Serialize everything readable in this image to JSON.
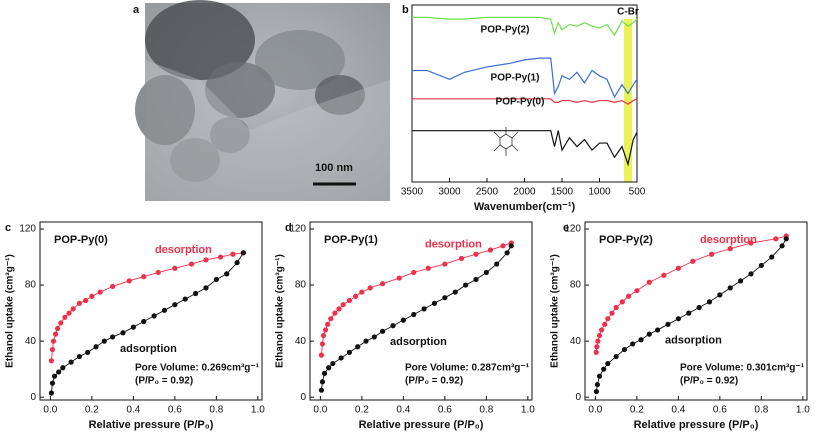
{
  "image_panel": {
    "label": "a",
    "scale_bar": "100 nm"
  },
  "chart_data": [
    {
      "type": "line",
      "panel_label": "b",
      "xlabel": "Wavenumber(cm⁻¹)",
      "xlim": [
        3500,
        500
      ],
      "xticks": [
        3500,
        3000,
        2500,
        2000,
        1500,
        1000,
        500
      ],
      "ylim": [
        0,
        100
      ],
      "annotations": [
        "C-Br"
      ],
      "x": [
        3500,
        3300,
        3000,
        2800,
        2500,
        2200,
        2000,
        1800,
        1650,
        1600,
        1550,
        1500,
        1400,
        1300,
        1200,
        1100,
        1000,
        900,
        800,
        700,
        620,
        550,
        500
      ],
      "series": [
        {
          "name": "POP-Py(2)",
          "color": "#6ee04a",
          "values": [
            93,
            93,
            92,
            92,
            93,
            93,
            93,
            93,
            92,
            84,
            90,
            86,
            89,
            88,
            90,
            88,
            87,
            89,
            83,
            91,
            88,
            90,
            92
          ]
        },
        {
          "name": "POP-Py(1)",
          "color": "#3a6fd0",
          "values": [
            63,
            63,
            58,
            62,
            65,
            67,
            69,
            70,
            70,
            50,
            54,
            60,
            58,
            62,
            56,
            63,
            60,
            58,
            48,
            55,
            50,
            55,
            58
          ]
        },
        {
          "name": "POP-Py(0)",
          "color": "#e8344a",
          "values": [
            47,
            47,
            47,
            47,
            47,
            47,
            47,
            47,
            47,
            45,
            45,
            46,
            46,
            45,
            46,
            45,
            46,
            46,
            45,
            46,
            44,
            46,
            47
          ]
        },
        {
          "color": "#111111",
          "values": [
            29,
            29,
            29,
            29,
            29,
            29,
            29,
            29,
            29,
            20,
            29,
            18,
            25,
            20,
            24,
            18,
            22,
            22,
            14,
            20,
            10,
            24,
            28
          ]
        }
      ]
    },
    {
      "type": "line",
      "panel_label": "c",
      "title": "POP-Py(0)",
      "xlabel": "Relative pressure (P/P₀)",
      "ylabel": "Ethanol uptake (cm³g⁻¹)",
      "xlim": [
        -0.05,
        1.02
      ],
      "ylim": [
        -2,
        125
      ],
      "xticks": [
        {
          "value": 0,
          "label": "0.0"
        },
        {
          "value": 0.2,
          "label": "0.2"
        },
        {
          "value": 0.4,
          "label": "0.4"
        },
        {
          "value": 0.6,
          "label": "0.6"
        },
        {
          "value": 0.8,
          "label": "0.8"
        },
        {
          "value": 1,
          "label": "1.0"
        }
      ],
      "yticks": [
        0,
        40,
        80,
        120
      ],
      "annotations": [
        "Pore Volume: 0.269cm³g⁻¹",
        "(P/P₀ = 0.92)"
      ],
      "series": [
        {
          "name": "desorption",
          "color": "#f0304a",
          "x": [
            0.93,
            0.88,
            0.82,
            0.75,
            0.68,
            0.6,
            0.52,
            0.45,
            0.38,
            0.3,
            0.24,
            0.2,
            0.17,
            0.14,
            0.11,
            0.09,
            0.07,
            0.05,
            0.035,
            0.025,
            0.015,
            0.01,
            0.005
          ],
          "values": [
            103,
            102,
            100,
            98,
            95,
            92,
            89,
            86,
            83,
            79,
            75,
            72,
            69,
            67,
            63,
            60,
            57,
            53,
            49,
            45,
            40,
            34,
            26
          ]
        },
        {
          "name": "adsorption",
          "color": "#111111",
          "x": [
            0.005,
            0.01,
            0.02,
            0.04,
            0.06,
            0.1,
            0.14,
            0.18,
            0.22,
            0.26,
            0.3,
            0.35,
            0.4,
            0.45,
            0.5,
            0.55,
            0.6,
            0.65,
            0.7,
            0.75,
            0.8,
            0.85,
            0.9,
            0.93
          ],
          "values": [
            3,
            10,
            15,
            18,
            21,
            25,
            29,
            32,
            36,
            40,
            43,
            46,
            50,
            54,
            58,
            62,
            66,
            70,
            74,
            78,
            84,
            88,
            96,
            103
          ]
        }
      ]
    },
    {
      "type": "line",
      "panel_label": "d",
      "title": "POP-Py(1)",
      "xlabel": "Relative pressure (P/P₀)",
      "ylabel": "Ethanol uptake (cm³g⁻¹)",
      "xlim": [
        -0.05,
        1.02
      ],
      "ylim": [
        -2,
        125
      ],
      "xticks": [
        {
          "value": 0,
          "label": "0.0"
        },
        {
          "value": 0.2,
          "label": "0.2"
        },
        {
          "value": 0.4,
          "label": "0.4"
        },
        {
          "value": 0.6,
          "label": "0.6"
        },
        {
          "value": 0.8,
          "label": "0.8"
        },
        {
          "value": 1,
          "label": "1.0"
        }
      ],
      "yticks": [
        0,
        40,
        80,
        120
      ],
      "annotations": [
        "Pore Volume: 0.287cm³g⁻¹",
        "(P/P₀ = 0.92)"
      ],
      "series": [
        {
          "name": "desorption",
          "color": "#f0304a",
          "x": [
            0.92,
            0.88,
            0.82,
            0.75,
            0.68,
            0.6,
            0.52,
            0.45,
            0.38,
            0.3,
            0.24,
            0.2,
            0.17,
            0.14,
            0.11,
            0.09,
            0.07,
            0.05,
            0.035,
            0.025,
            0.015,
            0.01,
            0.005
          ],
          "values": [
            110,
            108,
            105,
            102,
            99,
            95,
            92,
            89,
            85,
            81,
            78,
            75,
            72,
            69,
            66,
            63,
            60,
            56,
            52,
            48,
            44,
            38,
            30
          ]
        },
        {
          "name": "adsorption",
          "color": "#111111",
          "x": [
            0.005,
            0.01,
            0.02,
            0.04,
            0.06,
            0.1,
            0.14,
            0.18,
            0.22,
            0.26,
            0.3,
            0.35,
            0.4,
            0.45,
            0.5,
            0.55,
            0.6,
            0.65,
            0.7,
            0.75,
            0.8,
            0.85,
            0.9,
            0.92
          ],
          "values": [
            5,
            11,
            17,
            21,
            24,
            28,
            32,
            36,
            40,
            43,
            47,
            51,
            55,
            59,
            63,
            67,
            71,
            75,
            80,
            84,
            89,
            95,
            103,
            108
          ]
        }
      ]
    },
    {
      "type": "line",
      "panel_label": "e",
      "title": "POP-Py(2)",
      "xlabel": "Relative pressure (P/P₀)",
      "ylabel": "Ethanol uptake (cm³g⁻¹)",
      "xlim": [
        -0.05,
        1.02
      ],
      "ylim": [
        -2,
        125
      ],
      "xticks": [
        {
          "value": 0,
          "label": "0.0"
        },
        {
          "value": 0.2,
          "label": "0.2"
        },
        {
          "value": 0.4,
          "label": "0.4"
        },
        {
          "value": 0.6,
          "label": "0.6"
        },
        {
          "value": 0.8,
          "label": "0.8"
        },
        {
          "value": 1,
          "label": "1.0"
        }
      ],
      "yticks": [
        0,
        40,
        80,
        120
      ],
      "annotations": [
        "Pore Volume: 0.301cm³g⁻¹",
        "(P/P₀ = 0.92)"
      ],
      "series": [
        {
          "name": "desorption",
          "color": "#f0304a",
          "x": [
            0.92,
            0.87,
            0.75,
            0.65,
            0.56,
            0.47,
            0.4,
            0.33,
            0.26,
            0.2,
            0.16,
            0.13,
            0.1,
            0.08,
            0.06,
            0.045,
            0.03,
            0.02,
            0.012,
            0.007,
            0.004
          ],
          "values": [
            115,
            113,
            110,
            106,
            102,
            97,
            92,
            87,
            82,
            76,
            72,
            68,
            64,
            60,
            56,
            52,
            48,
            44,
            40,
            36,
            32
          ]
        },
        {
          "name": "adsorption",
          "color": "#111111",
          "x": [
            0.005,
            0.01,
            0.02,
            0.04,
            0.06,
            0.1,
            0.14,
            0.18,
            0.22,
            0.26,
            0.3,
            0.35,
            0.4,
            0.45,
            0.5,
            0.55,
            0.6,
            0.65,
            0.7,
            0.75,
            0.8,
            0.85,
            0.9,
            0.92
          ],
          "values": [
            4,
            9,
            15,
            20,
            24,
            29,
            34,
            38,
            41,
            45,
            48,
            52,
            56,
            60,
            64,
            68,
            73,
            78,
            83,
            88,
            94,
            100,
            108,
            113
          ]
        }
      ]
    }
  ]
}
